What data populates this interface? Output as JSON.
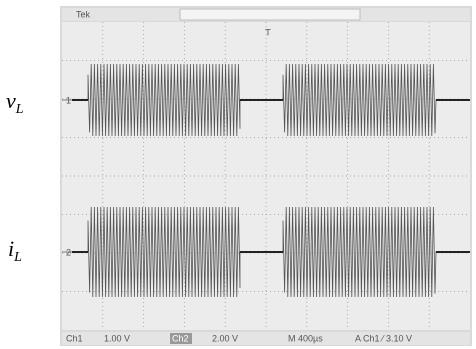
{
  "labels": {
    "channel_1": {
      "symbol": "v",
      "subscript": "L"
    },
    "channel_2": {
      "symbol": "i",
      "subscript": "L"
    }
  },
  "screen": {
    "header": "Tek",
    "trigger_marker": "T",
    "channel_1_marker": "1",
    "channel_2_marker": "2",
    "footer": {
      "ch1": "Ch1",
      "ch1_scale": "1.00 V",
      "ch2": "Ch2",
      "ch2_scale": "2.00 V",
      "time": "M 400µs",
      "trigger": "A Ch1 ⁄ 3.10 V"
    }
  }
}
